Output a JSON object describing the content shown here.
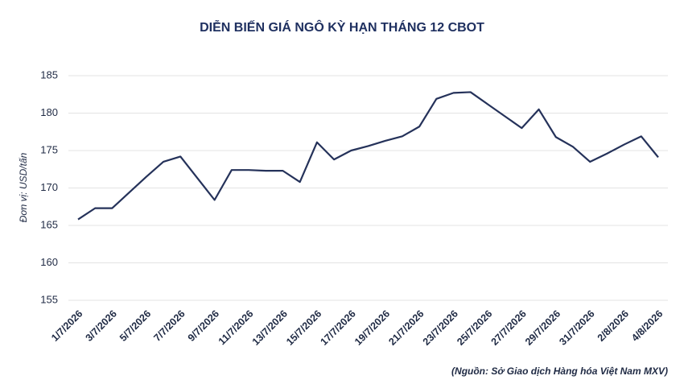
{
  "chart_data": {
    "type": "line",
    "title": "DIỄN BIẾN GIÁ NGÔ KỲ HẠN THÁNG 12 CBOT",
    "y_label": "Đơn vị: USD/tấn",
    "source": "(Nguồn: Sở Giao dịch Hàng hóa Việt Nam MXV)",
    "categories": [
      "1/7/2026",
      null,
      "3/7/2026",
      null,
      "5/7/2026",
      null,
      "7/7/2026",
      null,
      "9/7/2026",
      null,
      "11/7/2026",
      null,
      "13/7/2026",
      null,
      "15/7/2026",
      null,
      "17/7/2026",
      null,
      "19/7/2026",
      null,
      "21/7/2026",
      null,
      "23/7/2026",
      null,
      "25/7/2026",
      null,
      "27/7/2026",
      null,
      "29/7/2026",
      null,
      "31/7/2026",
      null,
      "2/8/2026",
      null,
      "4/8/2026"
    ],
    "series": [
      {
        "name": "CBOT",
        "color": "#25325a",
        "values": [
          165.8,
          167.3,
          167.3,
          169.4,
          171.5,
          173.5,
          174.2,
          171.3,
          168.4,
          172.4,
          172.4,
          172.3,
          172.3,
          170.8,
          176.1,
          173.8,
          175.0,
          175.6,
          176.3,
          176.9,
          178.2,
          181.9,
          182.7,
          182.8,
          181.2,
          179.6,
          178.0,
          180.5,
          176.8,
          175.5,
          173.5,
          174.6,
          175.8,
          176.9,
          174.1
        ]
      }
    ],
    "ylim": [
      155,
      185
    ],
    "yticks": [
      155,
      160,
      165,
      170,
      175,
      180,
      185
    ],
    "grid": true
  }
}
